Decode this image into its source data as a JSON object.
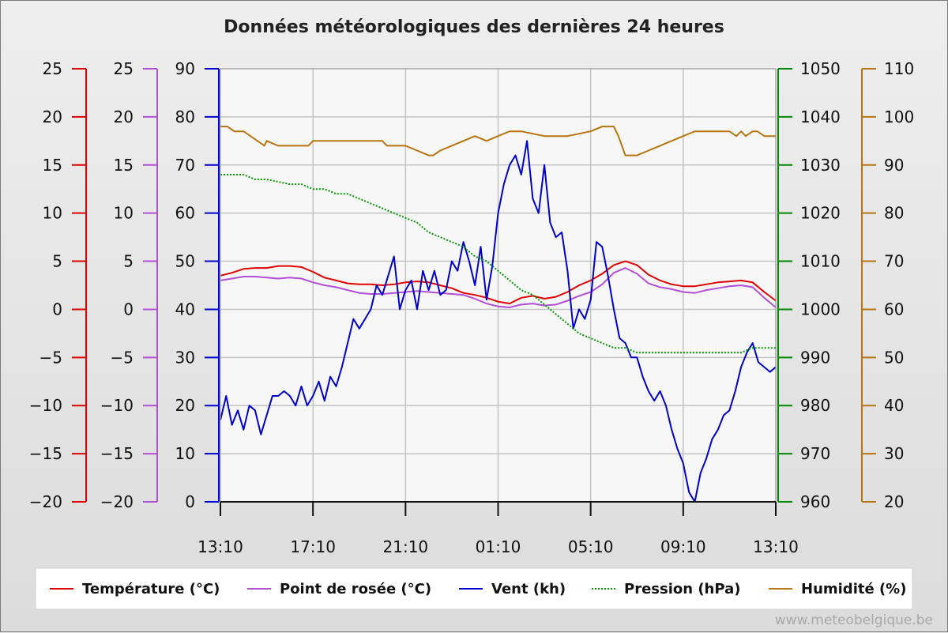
{
  "chart_data": {
    "type": "line",
    "title": "Données météorologiques des dernières 24 heures",
    "footer": "www.meteobelgique.be",
    "grid": true,
    "legend_position": "bottom",
    "x_tick_labels": [
      "13:10",
      "17:10",
      "21:10",
      "01:10",
      "05:10",
      "09:10",
      "13:10"
    ],
    "axes": [
      {
        "id": "temp",
        "side": "left",
        "color": "#e00000",
        "min": -20,
        "max": 25,
        "ticks": [
          -20,
          -15,
          -10,
          -5,
          0,
          5,
          10,
          15,
          20,
          25
        ]
      },
      {
        "id": "dew",
        "side": "left",
        "color": "#b44ed6",
        "min": -20,
        "max": 25,
        "ticks": [
          -20,
          -15,
          -10,
          -5,
          0,
          5,
          10,
          15,
          20,
          25
        ]
      },
      {
        "id": "wind",
        "side": "left",
        "color": "#0000cc",
        "min": 0,
        "max": 90,
        "ticks": [
          0,
          10,
          20,
          30,
          40,
          50,
          60,
          70,
          80,
          90
        ]
      },
      {
        "id": "press",
        "side": "right",
        "color": "#008800",
        "min": 960,
        "max": 1050,
        "ticks": [
          960,
          970,
          980,
          990,
          1000,
          1010,
          1020,
          1030,
          1040,
          1050
        ]
      },
      {
        "id": "hum",
        "side": "right",
        "color": "#b8740f",
        "min": 20,
        "max": 110,
        "ticks": [
          20,
          30,
          40,
          50,
          60,
          70,
          80,
          90,
          100,
          110
        ]
      }
    ],
    "x_range_hours": [
      0,
      24
    ],
    "series": [
      {
        "name": "Température (°C)",
        "axis": "temp",
        "color": "#e00000",
        "style": "solid",
        "x": [
          0,
          0.5,
          1,
          1.5,
          2,
          2.5,
          3,
          3.5,
          4,
          4.5,
          5,
          5.5,
          6,
          6.5,
          7,
          7.5,
          8,
          8.5,
          9,
          9.5,
          10,
          10.5,
          11,
          11.5,
          12,
          12.5,
          13,
          13.5,
          14,
          14.5,
          15,
          15.5,
          16,
          16.5,
          17,
          17.5,
          18,
          18.5,
          19,
          19.5,
          20,
          20.5,
          21,
          21.5,
          22,
          22.5,
          23,
          23.5,
          24
        ],
        "y": [
          3.5,
          3.8,
          4.2,
          4.3,
          4.3,
          4.5,
          4.5,
          4.4,
          3.9,
          3.3,
          3.0,
          2.7,
          2.6,
          2.6,
          2.5,
          2.6,
          2.8,
          2.9,
          2.8,
          2.5,
          2.2,
          1.7,
          1.5,
          1.2,
          0.8,
          0.6,
          1.2,
          1.4,
          1.1,
          1.3,
          1.8,
          2.5,
          3.0,
          3.7,
          4.6,
          5.0,
          4.6,
          3.6,
          3.0,
          2.6,
          2.4,
          2.4,
          2.6,
          2.8,
          2.9,
          3.0,
          2.8,
          1.8,
          0.9
        ]
      },
      {
        "name": "Point de rosée (°C)",
        "axis": "dew",
        "color": "#b44ed6",
        "style": "solid",
        "x": [
          0,
          0.5,
          1,
          1.5,
          2,
          2.5,
          3,
          3.5,
          4,
          4.5,
          5,
          5.5,
          6,
          6.5,
          7,
          7.5,
          8,
          8.5,
          9,
          9.5,
          10,
          10.5,
          11,
          11.5,
          12,
          12.5,
          13,
          13.5,
          14,
          14.5,
          15,
          15.5,
          16,
          16.5,
          17,
          17.5,
          18,
          18.5,
          19,
          19.5,
          20,
          20.5,
          21,
          21.5,
          22,
          22.5,
          23,
          23.5,
          24
        ],
        "y": [
          3.0,
          3.2,
          3.4,
          3.4,
          3.3,
          3.2,
          3.3,
          3.2,
          2.8,
          2.5,
          2.3,
          2.0,
          1.7,
          1.6,
          1.6,
          1.7,
          1.8,
          1.9,
          1.8,
          1.7,
          1.6,
          1.5,
          1.1,
          0.6,
          0.3,
          0.2,
          0.5,
          0.6,
          0.4,
          0.5,
          0.9,
          1.4,
          1.8,
          2.6,
          3.8,
          4.3,
          3.7,
          2.7,
          2.3,
          2.1,
          1.8,
          1.7,
          2.0,
          2.2,
          2.4,
          2.5,
          2.3,
          1.2,
          0.2
        ]
      },
      {
        "name": "Vent (kh)",
        "axis": "wind",
        "color": "#0000cc",
        "style": "solid",
        "x": [
          0,
          0.25,
          0.5,
          0.75,
          1,
          1.25,
          1.5,
          1.75,
          2,
          2.25,
          2.5,
          2.75,
          3,
          3.25,
          3.5,
          3.75,
          4,
          4.25,
          4.5,
          4.75,
          5,
          5.25,
          5.5,
          5.75,
          6,
          6.25,
          6.5,
          6.75,
          7,
          7.25,
          7.5,
          7.75,
          8,
          8.25,
          8.5,
          8.75,
          9,
          9.25,
          9.5,
          9.75,
          10,
          10.25,
          10.5,
          10.75,
          11,
          11.25,
          11.5,
          11.75,
          12,
          12.25,
          12.5,
          12.75,
          13,
          13.25,
          13.5,
          13.75,
          14,
          14.25,
          14.5,
          14.75,
          15,
          15.25,
          15.5,
          15.75,
          16,
          16.25,
          16.5,
          16.75,
          17,
          17.25,
          17.5,
          17.75,
          18,
          18.25,
          18.5,
          18.75,
          19,
          19.25,
          19.5,
          19.75,
          20,
          20.25,
          20.5,
          20.75,
          21,
          21.25,
          21.5,
          21.75,
          22,
          22.25,
          22.5,
          22.75,
          23,
          23.25,
          23.5,
          23.75,
          24
        ],
        "y": [
          17,
          22,
          16,
          19,
          15,
          20,
          19,
          14,
          18,
          22,
          22,
          23,
          22,
          20,
          24,
          20,
          22,
          25,
          21,
          26,
          24,
          28,
          33,
          38,
          36,
          38,
          40,
          45,
          43,
          47,
          51,
          40,
          44,
          46,
          40,
          48,
          44,
          48,
          43,
          44,
          50,
          48,
          54,
          50,
          45,
          53,
          42,
          49,
          60,
          66,
          70,
          72,
          68,
          75,
          63,
          60,
          70,
          58,
          55,
          56,
          48,
          36,
          40,
          38,
          42,
          54,
          53,
          47,
          40,
          34,
          33,
          30,
          30,
          26,
          23,
          21,
          23,
          20,
          15,
          11,
          8,
          2,
          0,
          6,
          9,
          13,
          15,
          18,
          19,
          23,
          28,
          31,
          33,
          29,
          28,
          27,
          28
        ]
      },
      {
        "name": "Pression (hPa)",
        "axis": "press",
        "color": "#009900",
        "style": "dotted",
        "x": [
          0,
          1,
          1.5,
          2,
          3,
          3.5,
          4,
          4.5,
          5,
          5.5,
          6,
          6.5,
          7,
          7.5,
          8,
          8.5,
          9,
          9.5,
          10,
          10.5,
          11,
          11.5,
          12,
          12.5,
          13,
          13.5,
          14,
          14.5,
          15,
          15.5,
          16,
          16.5,
          17,
          17.5,
          18,
          18.5,
          19,
          19.5,
          20,
          20.5,
          21,
          21.5,
          22,
          22.5,
          23,
          23.5,
          24
        ],
        "y": [
          1028,
          1028,
          1027,
          1027,
          1026,
          1026,
          1025,
          1025,
          1024,
          1024,
          1023,
          1022,
          1021,
          1020,
          1019,
          1018,
          1016,
          1015,
          1014,
          1013,
          1011,
          1010,
          1008,
          1006,
          1004,
          1003,
          1001,
          999,
          997,
          995,
          994,
          993,
          992,
          992,
          991,
          991,
          991,
          991,
          991,
          991,
          991,
          991,
          991,
          991,
          992,
          992,
          992
        ]
      },
      {
        "name": "Humidité (%)",
        "axis": "hum",
        "color": "#b8740f",
        "style": "solid",
        "x": [
          0,
          0.3,
          0.6,
          1,
          1.3,
          1.6,
          1.9,
          2,
          2.5,
          3,
          3.5,
          3.8,
          4,
          4.5,
          5,
          6,
          7,
          7.2,
          7.5,
          8,
          8.5,
          9,
          9.2,
          9.5,
          10,
          10.5,
          11,
          11.5,
          12,
          12.5,
          13,
          14,
          15,
          16,
          16.5,
          17,
          17.2,
          17.5,
          18,
          18.5,
          19,
          19.5,
          20,
          20.5,
          21,
          21.5,
          22,
          22.3,
          22.5,
          22.7,
          23,
          23.2,
          23.5,
          24
        ],
        "y": [
          98,
          98,
          97,
          97,
          96,
          95,
          94,
          95,
          94,
          94,
          94,
          94,
          95,
          95,
          95,
          95,
          95,
          94,
          94,
          94,
          93,
          92,
          92,
          93,
          94,
          95,
          96,
          95,
          96,
          97,
          97,
          96,
          96,
          97,
          98,
          98,
          96,
          92,
          92,
          93,
          94,
          95,
          96,
          97,
          97,
          97,
          97,
          96,
          97,
          96,
          97,
          97,
          96,
          96
        ]
      }
    ]
  }
}
